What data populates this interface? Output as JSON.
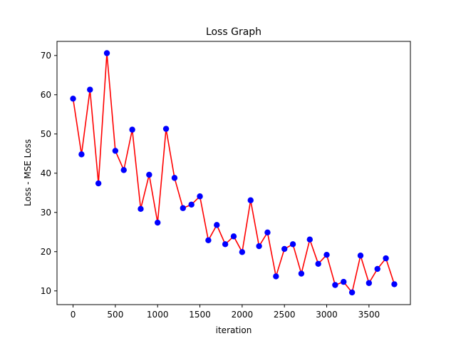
{
  "chart_data": {
    "type": "line",
    "title": "Loss Graph",
    "xlabel": "iteration",
    "ylabel": "Loss - MSE Loss",
    "xlim": [
      -190,
      3990
    ],
    "ylim": [
      6.5,
      73.6
    ],
    "xticks": [
      0,
      500,
      1000,
      1500,
      2000,
      2500,
      3000,
      3500
    ],
    "yticks": [
      10,
      20,
      30,
      40,
      50,
      60,
      70
    ],
    "grid": false,
    "legend": "none",
    "line_color": "#ff0000",
    "marker_color": "#0000ff",
    "x": [
      0,
      100,
      200,
      300,
      400,
      500,
      600,
      700,
      800,
      900,
      1000,
      1100,
      1200,
      1300,
      1400,
      1500,
      1600,
      1700,
      1800,
      1900,
      2000,
      2100,
      2200,
      2300,
      2400,
      2500,
      2600,
      2700,
      2800,
      2900,
      3000,
      3100,
      3200,
      3300,
      3400,
      3500,
      3600,
      3700,
      3800
    ],
    "y": [
      59.0,
      44.8,
      61.3,
      37.4,
      70.6,
      45.7,
      40.8,
      51.1,
      30.9,
      39.6,
      27.4,
      51.3,
      38.8,
      31.1,
      32.0,
      34.1,
      22.9,
      26.8,
      21.9,
      23.9,
      19.9,
      33.1,
      21.4,
      24.9,
      13.7,
      20.7,
      21.9,
      14.4,
      23.1,
      16.9,
      19.2,
      11.5,
      12.3,
      9.6,
      19.0,
      12.0,
      15.6,
      18.3,
      11.7
    ]
  }
}
